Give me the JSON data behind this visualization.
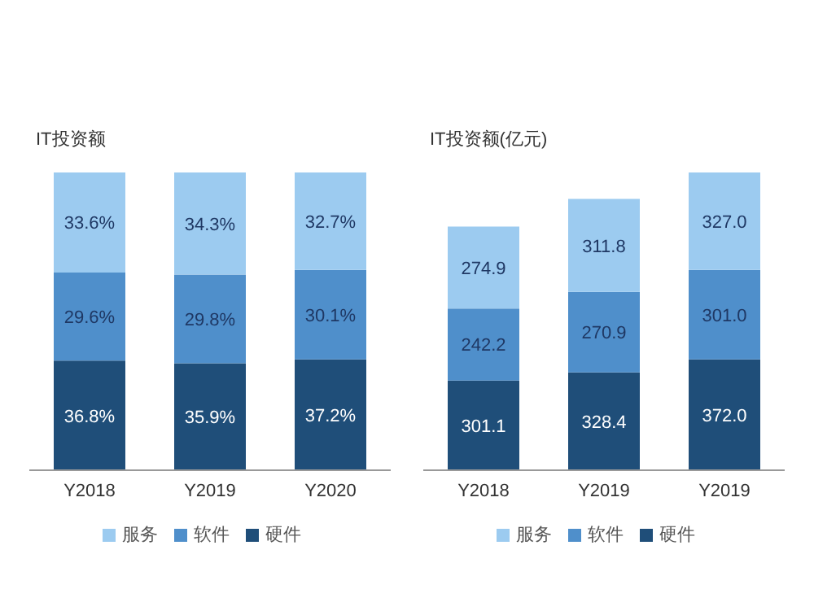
{
  "chart_data": [
    {
      "type": "bar",
      "title": "IT投资额",
      "stacked": true,
      "categories": [
        "Y2018",
        "Y2019",
        "Y2020"
      ],
      "legend": "bottom",
      "series": [
        {
          "name": "硬件",
          "color": "#1f4e79",
          "values": [
            36.8,
            35.9,
            37.2
          ],
          "value_labels": [
            "36.8%",
            "35.9%",
            "37.2%"
          ]
        },
        {
          "name": "软件",
          "color": "#4f8fcb",
          "values": [
            29.6,
            29.8,
            30.1
          ],
          "value_labels": [
            "29.6%",
            "29.8%",
            "30.1%"
          ]
        },
        {
          "name": "服务",
          "color": "#9ccbf0",
          "values": [
            33.6,
            34.3,
            32.7
          ],
          "value_labels": [
            "33.6%",
            "34.3%",
            "32.7%"
          ]
        }
      ]
    },
    {
      "type": "bar",
      "title": "IT投资额(亿元)",
      "stacked": true,
      "categories": [
        "Y2018",
        "Y2019",
        "Y2019"
      ],
      "legend": "bottom",
      "series": [
        {
          "name": "硬件",
          "color": "#1f4e79",
          "values": [
            301.1,
            328.4,
            372.0
          ],
          "value_labels": [
            "301.1",
            "328.4",
            "372.0"
          ]
        },
        {
          "name": "软件",
          "color": "#4f8fcb",
          "values": [
            242.2,
            270.9,
            301.0
          ],
          "value_labels": [
            "242.2",
            "270.9",
            "301.0"
          ]
        },
        {
          "name": "服务",
          "color": "#9ccbf0",
          "values": [
            274.9,
            311.8,
            327.0
          ],
          "value_labels": [
            "274.9",
            "311.8",
            "327.0"
          ]
        }
      ]
    }
  ]
}
